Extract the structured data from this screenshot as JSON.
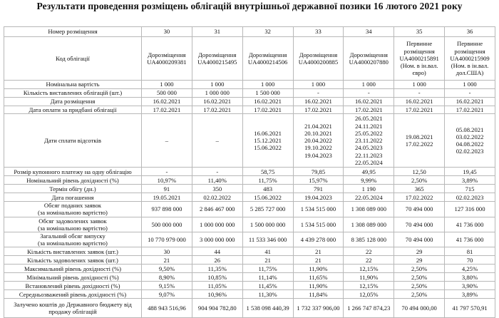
{
  "title": "Результати проведення розміщень облігацій внутрішньої державної позики 16 лютого 2021 року",
  "rows": [
    {
      "label": "Номер розміщення",
      "values": [
        "30",
        "31",
        "32",
        "33",
        "34",
        "35",
        "36"
      ]
    },
    {
      "label": "Код облігації",
      "values": [
        "Дорозміщення\nUA4000209381",
        "Дорозміщення\nUA4000215495",
        "Дорозміщення\nUA4000214506",
        "Дорозміщення\nUA4000200885",
        "Дорозміщення\nUA4000207880",
        "Первинне\nрозміщення\nUA4000215891\n(Ном. в ін.вал.\nєвро)",
        "Первинне\nрозміщення\nUA4000215909\n(Ном. в ін.вал.\nдол.США)"
      ]
    },
    {
      "label": "Номінальна вартість",
      "values": [
        "1 000",
        "1 000",
        "1 000",
        "1 000",
        "1 000",
        "1 000",
        "1 000"
      ]
    },
    {
      "label": "Кількість виставлених облігацій (шт.)",
      "values": [
        "500 000",
        "1 000 000",
        "1 500 000",
        "-",
        "-",
        "-",
        "-"
      ]
    },
    {
      "label": "Дата розміщення",
      "values": [
        "16.02.2021",
        "16.02.2021",
        "16.02.2021",
        "16.02.2021",
        "16.02.2021",
        "16.02.2021",
        "16.02.2021"
      ]
    },
    {
      "label": "Дата оплати за придбані облігації",
      "values": [
        "17.02.2021",
        "17.02.2021",
        "17.02.2021",
        "17.02.2021",
        "17.02.2021",
        "17.02.2021",
        "17.02.2021"
      ]
    },
    {
      "label": "Дати сплати відсотків",
      "values": [
        "–",
        "–",
        "16.06.2021\n15.12.2021\n15.06.2022",
        "21.04.2021\n20.10.2021\n20.04.2022\n19.10.2022\n19.04.2023",
        "26.05.2021\n24.11.2021\n25.05.2022\n23.11.2022\n24.05.2023\n22.11.2023\n22.05.2024",
        "19.08.2021\n17.02.2022",
        "05.08.2021\n03.02.2022\n04.08.2022\n02.02.2023"
      ]
    },
    {
      "label": "Розмір купонного платежу на одну облігацію",
      "values": [
        "-",
        "-",
        "58,75",
        "79,85",
        "49,95",
        "12,50",
        "19,45"
      ]
    },
    {
      "label": "Номінальний рівень дохідності (%)",
      "values": [
        "10,97%",
        "11,40%",
        "11,75%",
        "15,97%",
        "9,99%",
        "2,50%",
        "3,89%"
      ]
    },
    {
      "label": "Термін обігу (дн.)",
      "values": [
        "91",
        "350",
        "483",
        "791",
        "1 190",
        "365",
        "715"
      ]
    },
    {
      "label": "Дата погашення",
      "values": [
        "19.05.2021",
        "02.02.2022",
        "15.06.2022",
        "19.04.2023",
        "22.05.2024",
        "17.02.2022",
        "02.02.2023"
      ]
    },
    {
      "label": "Обсяг поданих заявок\n(за номінальною вартістю)",
      "values": [
        "937 898 000",
        "2 846 467 000",
        "5 285 727 000",
        "1 534 515 000",
        "1 308 089 000",
        "70 494 000",
        "127 316 000"
      ]
    },
    {
      "label": "Обсяг задоволених заявок\n(за номінальною вартістю)",
      "values": [
        "500 000 000",
        "1 000 000 000",
        "1 500 000 000",
        "1 534 515 000",
        "1 308 089 000",
        "70 494 000",
        "41 736 000"
      ]
    },
    {
      "label": "Загальний обсяг випуску\n(за номінальною вартістю)",
      "values": [
        "10 770 979 000",
        "3 000 000 000",
        "11 533 346 000",
        "4 439 278 000",
        "8 385 128 000",
        "70 494 000",
        "41 736 000"
      ]
    },
    {
      "label": "Кількість виставлених заявок (шт.)",
      "values": [
        "30",
        "44",
        "41",
        "21",
        "22",
        "29",
        "81"
      ]
    },
    {
      "label": "Кількість задоволених заявок (шт.)",
      "values": [
        "21",
        "26",
        "21",
        "21",
        "22",
        "29",
        "70"
      ]
    },
    {
      "label": "Максимальний рівень дохідності (%)",
      "values": [
        "9,50%",
        "11,35%",
        "11,75%",
        "11,90%",
        "12,15%",
        "2,50%",
        "4,25%"
      ]
    },
    {
      "label": "Мінімальний рівень дохідності (%)",
      "values": [
        "8,90%",
        "10,85%",
        "11,14%",
        "11,65%",
        "11,90%",
        "2,50%",
        "3,80%"
      ]
    },
    {
      "label": "Встановлений рівень дохідності (%)",
      "values": [
        "9,15%",
        "11,05%",
        "11,45%",
        "11,90%",
        "12,15%",
        "2,50%",
        "3,90%"
      ]
    },
    {
      "label": "Середньозважений рівень дохідності (%)",
      "values": [
        "9,07%",
        "10,96%",
        "11,30%",
        "11,84%",
        "12,05%",
        "2,50%",
        "3,89%"
      ]
    },
    {
      "label": "Залучено коштів до Державного бюджету від\nпродажу облігацій",
      "values": [
        "488 943 516,96",
        "904 904 782,80",
        "1 538 098 440,39",
        "1 732 337 906,00",
        "1 266 747 874,23",
        "70 494 000,00",
        "41 797 570,91"
      ]
    }
  ]
}
